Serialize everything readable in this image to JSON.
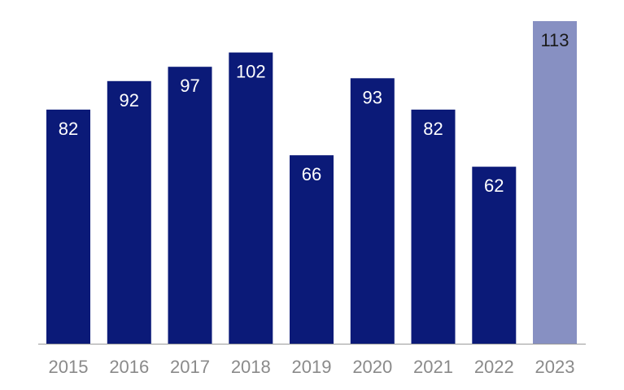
{
  "chart_data": {
    "type": "bar",
    "categories": [
      "2015",
      "2016",
      "2017",
      "2018",
      "2019",
      "2020",
      "2021",
      "2022",
      "2023"
    ],
    "values": [
      82,
      92,
      97,
      102,
      66,
      93,
      82,
      62,
      113
    ],
    "value_labels": [
      "82",
      "92",
      "97",
      "102",
      "66",
      "93",
      "82",
      "62",
      "113"
    ],
    "title": "",
    "xlabel": "",
    "ylabel": "",
    "ylim": [
      0,
      113
    ],
    "grid": false,
    "legend": "none",
    "colors": {
      "bar": "#0b1a78",
      "highlight_bar": "#8790c2",
      "label_on_bar": "#ffffff",
      "label_on_highlight": "#1a1a1a",
      "axis_line": "#9a9a9a",
      "tick_label": "#8a8a8a"
    },
    "highlight_category": "2023"
  }
}
